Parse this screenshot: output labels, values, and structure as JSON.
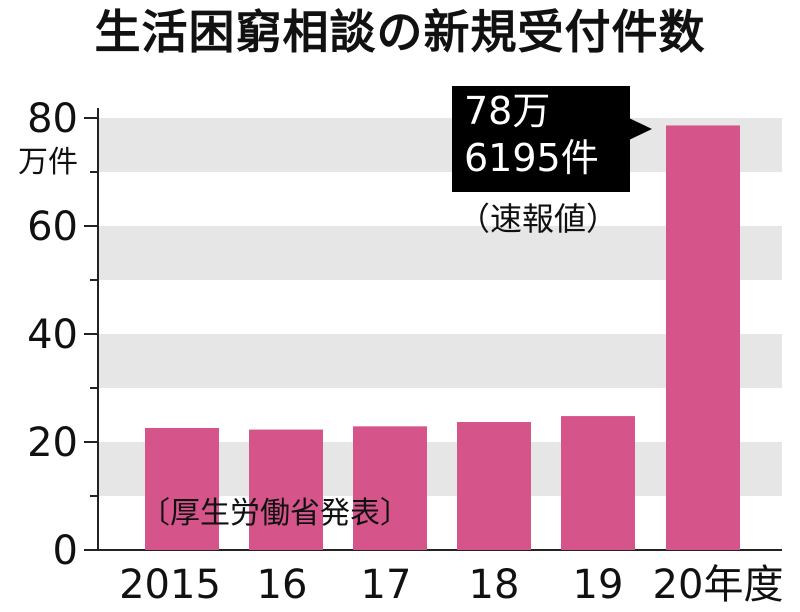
{
  "title": "生活困窮相談の新規受付件数",
  "unit_label": "万件",
  "source_note": "〔厚生労働省発表〕",
  "callout": {
    "line1": "78万",
    "line2": "6195件",
    "note": "（速報値）"
  },
  "colors": {
    "bar": "#d5548a",
    "band": "#e6e6e6",
    "callout_bg": "#000000"
  },
  "chart_data": {
    "type": "bar",
    "title": "生活困窮相談の新規受付件数",
    "categories": [
      "2015",
      "16",
      "17",
      "18",
      "19",
      "20年度"
    ],
    "values": [
      22.6,
      22.3,
      22.9,
      23.7,
      24.8,
      78.6195
    ],
    "ylabel": "万件",
    "ylim": [
      0,
      80
    ],
    "yticks": [
      0,
      20,
      40,
      60,
      80
    ],
    "ytick_labels": [
      "0",
      "20",
      "40",
      "60",
      "80"
    ],
    "grid": "alternating horizontal bands",
    "annotation": "78万 6195件（速報値）"
  }
}
